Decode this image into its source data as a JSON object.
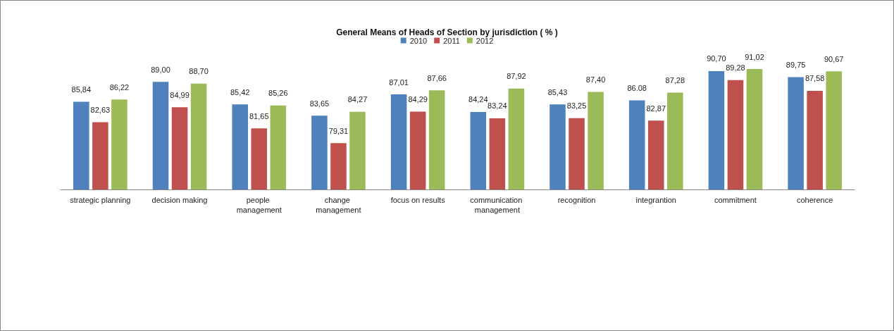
{
  "chart_data": {
    "type": "bar",
    "title": "General Means of Heads of Section by jurisdiction ( % )",
    "categories": [
      "strategic planning",
      "decision making",
      "people management",
      "change management",
      "focus on results",
      "communication management",
      "recognition",
      "integrantion",
      "commitment",
      "coherence"
    ],
    "series": [
      {
        "name": "2010",
        "color": "#4f81bd",
        "values": [
          85.84,
          89.0,
          85.42,
          83.65,
          87.01,
          84.24,
          85.43,
          86.08,
          90.7,
          89.75
        ],
        "value_labels": [
          "85,84",
          "89,00",
          "85,42",
          "83,65",
          "87,01",
          "84,24",
          "85,43",
          "86.08",
          "90,70",
          "89,75"
        ]
      },
      {
        "name": "2011",
        "color": "#c0504d",
        "values": [
          82.63,
          84.99,
          81.65,
          79.31,
          84.29,
          83.24,
          83.25,
          82.87,
          89.28,
          87.58
        ],
        "value_labels": [
          "82,63",
          "84,99",
          "81,65",
          "79,31",
          "84,29",
          "83,24",
          "83,25",
          "82,87",
          "89,28",
          "87,58"
        ]
      },
      {
        "name": "2012",
        "color": "#9bbb59",
        "values": [
          86.22,
          88.7,
          85.26,
          84.27,
          87.66,
          87.92,
          87.4,
          87.28,
          91.02,
          90.67
        ],
        "value_labels": [
          "86,22",
          "88,70",
          "85,26",
          "84,27",
          "87,66",
          "87,92",
          "87,40",
          "87,28",
          "91,02",
          "90,67"
        ]
      }
    ],
    "ylim": [
      72,
      91.02
    ],
    "grid": false,
    "legend": "top"
  }
}
